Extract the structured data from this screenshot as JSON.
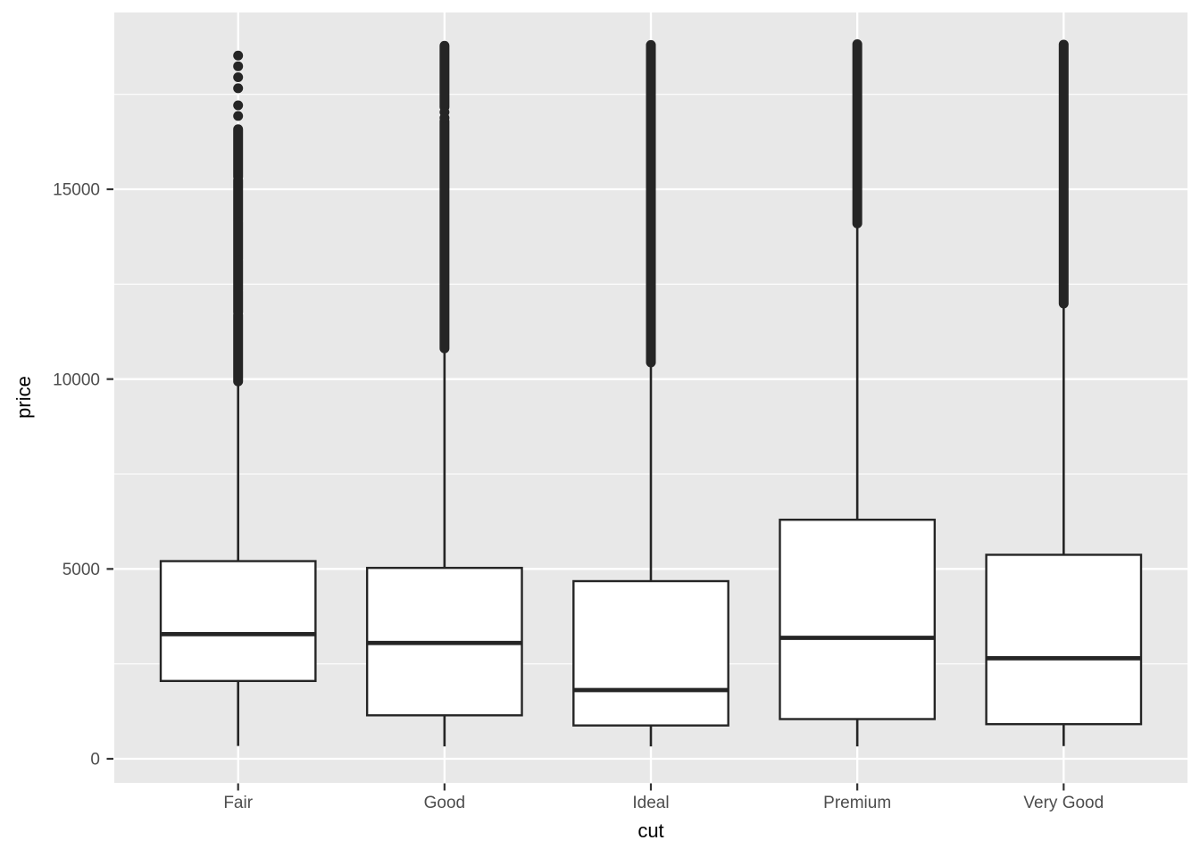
{
  "chart_data": {
    "type": "boxplot",
    "title": "",
    "xlabel": "cut",
    "ylabel": "price",
    "legend": "none",
    "grid": "on",
    "panel_theme": "ggplot2-grey",
    "categories": [
      "Fair",
      "Good",
      "Ideal",
      "Premium",
      "Very Good"
    ],
    "y_axis": {
      "limits": [
        -635,
        19655
      ],
      "ticks_major": [
        0,
        5000,
        10000,
        15000
      ],
      "tick_labels": [
        "0",
        "5000",
        "10000",
        "15000"
      ],
      "ticks_minor": [
        2500,
        7500,
        12500,
        17500
      ]
    },
    "series": [
      {
        "category": "Fair",
        "min": 337,
        "q1": 2050,
        "median": 3282,
        "q3": 5206,
        "whisker_low": 337,
        "whisker_high": 9900,
        "max": 18574,
        "outlier_dots": [
          18520,
          18240,
          17950,
          17660,
          17210,
          16930
        ],
        "outlier_runs": [
          [
            16580,
            15330
          ],
          [
            15240,
            14180
          ],
          [
            14130,
            13170
          ],
          [
            13120,
            12350
          ],
          [
            12300,
            11760
          ],
          [
            11690,
            9940
          ]
        ]
      },
      {
        "category": "Good",
        "min": 327,
        "q1": 1145,
        "median": 3051,
        "q3": 5028,
        "whisker_low": 327,
        "whisker_high": 10800,
        "max": 18788,
        "outlier_dots": [
          17030,
          16880
        ],
        "outlier_runs": [
          [
            18780,
            17170
          ],
          [
            16790,
            10810
          ]
        ]
      },
      {
        "category": "Ideal",
        "min": 326,
        "q1": 878,
        "median": 1810,
        "q3": 4679,
        "whisker_low": 326,
        "whisker_high": 10400,
        "max": 18806,
        "outlier_dots": [],
        "outlier_runs": [
          [
            18800,
            10440
          ]
        ]
      },
      {
        "category": "Premium",
        "min": 326,
        "q1": 1046,
        "median": 3185,
        "q3": 6296,
        "whisker_low": 326,
        "whisker_high": 14140,
        "max": 18823,
        "outlier_dots": [],
        "outlier_runs": [
          [
            18820,
            14100
          ]
        ]
      },
      {
        "category": "Very Good",
        "min": 336,
        "q1": 912,
        "median": 2648,
        "q3": 5373,
        "whisker_low": 336,
        "whisker_high": 12030,
        "max": 18818,
        "outlier_dots": [],
        "outlier_runs": [
          [
            18810,
            11990
          ]
        ]
      }
    ],
    "colors": {
      "panel_background": "#E8E8E8",
      "gridline": "#FFFFFF",
      "box_fill": "#FFFFFF",
      "box_stroke": "#252525",
      "outlier": "#252525",
      "axis_text": "#4D4D4D",
      "axis_title": "#000000",
      "tick_mark": "#333333",
      "figure_background": "#FFFFFF"
    }
  }
}
